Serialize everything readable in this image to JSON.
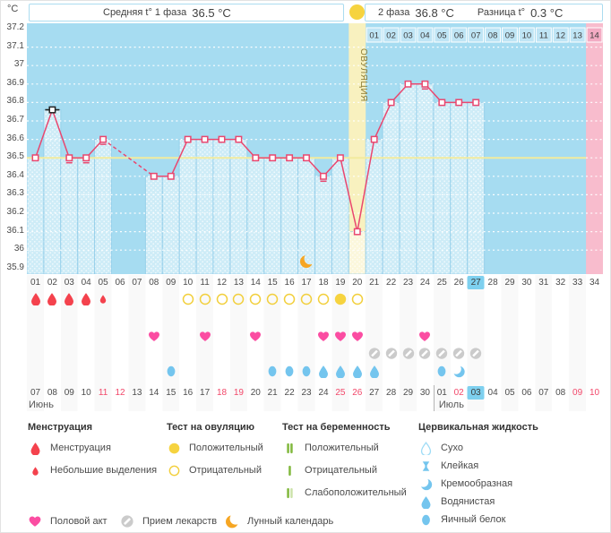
{
  "header": {
    "unit": "°C",
    "phase1_label": "Средняя t° 1 фаза",
    "phase1_value": "36.5 °C",
    "phase2_label": "2 фаза",
    "phase2_value": "36.8 °C",
    "diff_label": "Разница t°",
    "diff_value": "0.3 °C"
  },
  "chart_data": {
    "type": "line",
    "ylabel": "°C",
    "ylim": [
      35.9,
      37.2
    ],
    "yticks": [
      "37.2",
      "37.1",
      "37",
      "36.9",
      "36.8",
      "36.7",
      "36.6",
      "36.5",
      "36.4",
      "36.3",
      "36.2",
      "36.1",
      "36",
      "35.9"
    ],
    "grid": "dotted-white",
    "day_labels": [
      "01",
      "02",
      "03",
      "04",
      "05",
      "06",
      "07",
      "08",
      "09",
      "10",
      "11",
      "12",
      "13",
      "14",
      "15",
      "16",
      "17",
      "18",
      "19",
      "20",
      "21",
      "22",
      "23",
      "24",
      "25",
      "26",
      "27",
      "28",
      "29",
      "30",
      "31",
      "32",
      "33",
      "34"
    ],
    "temps": [
      36.5,
      36.76,
      36.5,
      36.5,
      36.6,
      null,
      null,
      36.4,
      36.4,
      36.6,
      36.6,
      36.6,
      36.6,
      36.5,
      36.5,
      36.5,
      36.5,
      36.4,
      36.5,
      36.1,
      36.6,
      36.8,
      36.9,
      36.9,
      36.8,
      36.8,
      36.8,
      null,
      null,
      null,
      null,
      null,
      null,
      null
    ],
    "coverline": 36.5,
    "ovulation_day": 20,
    "ovulation_label": "ОВУЛЯЦИЯ",
    "current_cycle_day": 27,
    "expected_period_day": 34,
    "dpo_labels": [
      "01",
      "02",
      "03",
      "04",
      "05",
      "06",
      "07",
      "08",
      "09",
      "10",
      "11",
      "12",
      "13",
      "14"
    ],
    "dpo_start_day": 21,
    "marker_flags": {
      "2": "black-line",
      "3": "tick",
      "4": "tick",
      "5": "tick",
      "18": "tick",
      "24": "tick"
    },
    "moon_day": 17,
    "menstruation": [
      {
        "day": 1,
        "size": "full"
      },
      {
        "day": 2,
        "size": "full"
      },
      {
        "day": 3,
        "size": "full"
      },
      {
        "day": 4,
        "size": "full"
      },
      {
        "day": 5,
        "size": "light"
      }
    ],
    "ovulation_tests": [
      {
        "day": 10,
        "result": "negative"
      },
      {
        "day": 11,
        "result": "negative"
      },
      {
        "day": 12,
        "result": "negative"
      },
      {
        "day": 13,
        "result": "negative"
      },
      {
        "day": 14,
        "result": "negative"
      },
      {
        "day": 15,
        "result": "negative"
      },
      {
        "day": 16,
        "result": "negative"
      },
      {
        "day": 17,
        "result": "negative"
      },
      {
        "day": 18,
        "result": "negative"
      },
      {
        "day": 19,
        "result": "positive"
      },
      {
        "day": 20,
        "result": "negative"
      }
    ],
    "intercourse_days": [
      8,
      11,
      14,
      18,
      19,
      20,
      24
    ],
    "medication_days": [
      21,
      22,
      23,
      24,
      25,
      26,
      27
    ],
    "cervical_fluid": [
      {
        "day": 9,
        "type": "eggwhite"
      },
      {
        "day": 15,
        "type": "eggwhite"
      },
      {
        "day": 16,
        "type": "eggwhite"
      },
      {
        "day": 17,
        "type": "eggwhite"
      },
      {
        "day": 18,
        "type": "watery"
      },
      {
        "day": 19,
        "type": "watery"
      },
      {
        "day": 20,
        "type": "watery"
      },
      {
        "day": 21,
        "type": "watery"
      },
      {
        "day": 25,
        "type": "eggwhite"
      },
      {
        "day": 26,
        "type": "creamy"
      }
    ],
    "dates": [
      {
        "d": "07"
      },
      {
        "d": "08"
      },
      {
        "d": "09"
      },
      {
        "d": "10"
      },
      {
        "d": "11",
        "w": 1
      },
      {
        "d": "12",
        "w": 1
      },
      {
        "d": "13"
      },
      {
        "d": "14"
      },
      {
        "d": "15"
      },
      {
        "d": "16"
      },
      {
        "d": "17"
      },
      {
        "d": "18",
        "w": 1
      },
      {
        "d": "19",
        "w": 1
      },
      {
        "d": "20"
      },
      {
        "d": "21"
      },
      {
        "d": "22"
      },
      {
        "d": "23"
      },
      {
        "d": "24"
      },
      {
        "d": "25",
        "w": 1
      },
      {
        "d": "26",
        "w": 1
      },
      {
        "d": "27"
      },
      {
        "d": "28"
      },
      {
        "d": "29"
      },
      {
        "d": "30"
      },
      {
        "d": "01"
      },
      {
        "d": "02",
        "w": 1
      },
      {
        "d": "03",
        "today": 1
      },
      {
        "d": "04"
      },
      {
        "d": "05"
      },
      {
        "d": "06"
      },
      {
        "d": "07"
      },
      {
        "d": "08"
      },
      {
        "d": "09",
        "w": 1
      },
      {
        "d": "10",
        "w": 1
      }
    ],
    "months": [
      {
        "name": "Июнь",
        "start_day": 1
      },
      {
        "name": "Июль",
        "start_day": 25
      }
    ]
  },
  "legend": {
    "groups": [
      {
        "title": "Менструация",
        "items": [
          {
            "icon": "drop-red",
            "label": "Менструация"
          },
          {
            "icon": "drop-red-small",
            "label": "Небольшие выделения"
          }
        ]
      },
      {
        "title": "Тест на овуляцию",
        "items": [
          {
            "icon": "circle-yellow-filled",
            "label": "Положительный"
          },
          {
            "icon": "circle-yellow-outline",
            "label": "Отрицательный"
          }
        ]
      },
      {
        "title": "Тест на беременность",
        "items": [
          {
            "icon": "test-two-lines",
            "label": "Положительный"
          },
          {
            "icon": "test-one-line",
            "label": "Отрицательный"
          },
          {
            "icon": "test-weak-lines",
            "label": "Слабоположительный"
          }
        ]
      },
      {
        "title": "Цервикальная жидкость",
        "items": [
          {
            "icon": "fluid-dry",
            "label": "Сухо"
          },
          {
            "icon": "fluid-sticky",
            "label": "Клейкая"
          },
          {
            "icon": "fluid-creamy",
            "label": "Кремообразная"
          },
          {
            "icon": "fluid-watery",
            "label": "Водянистая"
          },
          {
            "icon": "fluid-eggwhite",
            "label": "Яичный белок"
          }
        ]
      }
    ],
    "footer_items": [
      {
        "icon": "heart-pink",
        "label": "Половой акт"
      },
      {
        "icon": "pill-gray",
        "label": "Прием лекарств"
      },
      {
        "icon": "moon-orange",
        "label": "Лунный календарь"
      }
    ]
  },
  "colors": {
    "chart_bg": "#a6dcf1",
    "bar_overlay": "rgba(255,255,255,0.45)",
    "temp_line": "#e9476f",
    "coverline": "#f2eb9e",
    "ovulation_band": "#f8f1bf",
    "ovulation_text": "#8c7b33",
    "expected_period_col": "#f8bccd",
    "dpo_cell": "#bfe5f5",
    "dpo_cell_last": "#f3abc3",
    "today_highlight": "#7ed0ef",
    "menses": "#f4424d",
    "test_circle": "#f2cf3c",
    "test_filled": "#f6d33f",
    "heart": "#fb4da2",
    "pill": "#cbcbcb",
    "fluid": "#74c5ee",
    "fluid_outline": "#9edcf6",
    "preg_green": "#82b93f",
    "preg_pale": "#cde3ab",
    "moon": "#f6a623",
    "weekend_red": "#f2486a"
  }
}
